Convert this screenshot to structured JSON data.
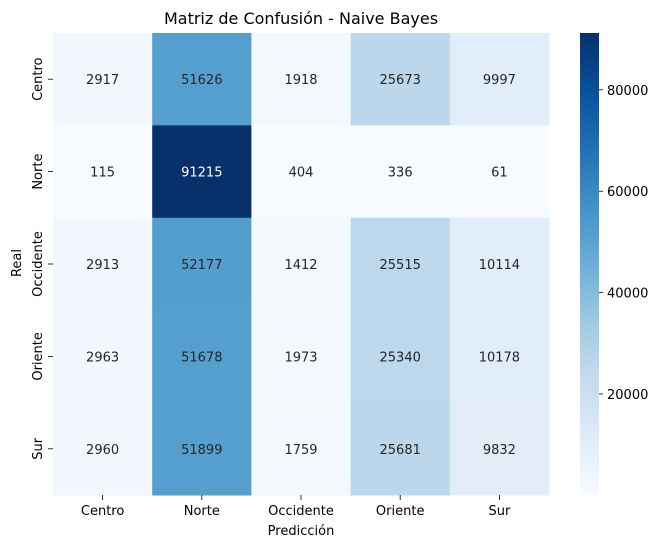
{
  "chart_data": {
    "type": "heatmap",
    "title": "Matriz de Confusión - Naive Bayes",
    "xlabel": "Predicción",
    "ylabel": "Real",
    "x_categories": [
      "Centro",
      "Norte",
      "Occidente",
      "Oriente",
      "Sur"
    ],
    "y_categories": [
      "Centro",
      "Norte",
      "Occidente",
      "Oriente",
      "Sur"
    ],
    "values": [
      [
        2917,
        51626,
        1918,
        25673,
        9997
      ],
      [
        115,
        91215,
        404,
        336,
        61
      ],
      [
        2913,
        52177,
        1412,
        25515,
        10114
      ],
      [
        2963,
        51678,
        1973,
        25340,
        10178
      ],
      [
        2960,
        51899,
        1759,
        25681,
        9832
      ]
    ],
    "colorbar": {
      "min": 61,
      "max": 91215,
      "ticks": [
        20000,
        40000,
        60000,
        80000
      ]
    },
    "colormap": "Blues",
    "colormap_stops": [
      "#f7fbff",
      "#deebf7",
      "#c6dbef",
      "#9ecae1",
      "#6baed6",
      "#4292c6",
      "#2171b5",
      "#08519c",
      "#08306b"
    ],
    "grid": false
  }
}
